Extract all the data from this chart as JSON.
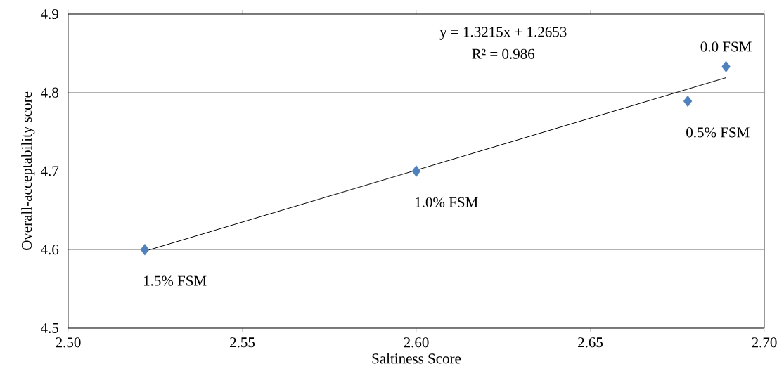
{
  "chart_data": {
    "type": "scatter",
    "xlabel": "Saltiness Score",
    "ylabel": "Overall-acceptability score",
    "xlim": [
      2.5,
      2.7
    ],
    "ylim": [
      4.5,
      4.9
    ],
    "xticks": [
      {
        "value": 2.5,
        "label": "2.50"
      },
      {
        "value": 2.55,
        "label": "2.55"
      },
      {
        "value": 2.6,
        "label": "2.60"
      },
      {
        "value": 2.65,
        "label": "2.65"
      },
      {
        "value": 2.7,
        "label": "2.70"
      }
    ],
    "yticks": [
      4.5,
      4.6,
      4.7,
      4.8,
      4.9
    ],
    "grid": "y",
    "series": [
      {
        "color": "#4f81bd",
        "marker": "diamond",
        "x": [
          2.522,
          2.6,
          2.678,
          2.689
        ],
        "values": [
          4.6,
          4.7,
          4.789,
          4.833
        ]
      },
      {
        "type": "line",
        "color": "#000000",
        "marker": "none",
        "x": [
          2.522,
          2.689
        ],
        "values": [
          4.598,
          4.819
        ]
      }
    ],
    "annotations": [
      {
        "text": "1.5% FSM",
        "x": 2.522,
        "y": 4.6
      },
      {
        "text": "1.0% FSM",
        "x": 2.6,
        "y": 4.7
      },
      {
        "text": "0.5% FSM",
        "x": 2.678,
        "y": 4.789
      },
      {
        "text": "0.0 FSM",
        "x": 2.689,
        "y": 4.833
      },
      "y = 1.3215x + 1.2653",
      "R² = 0.986"
    ]
  }
}
